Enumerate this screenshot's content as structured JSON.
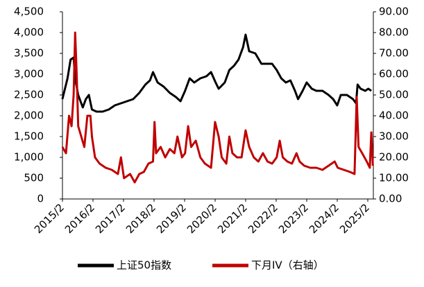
{
  "chart_data": {
    "type": "line",
    "xlim": [
      2015.083,
      2025.265
    ],
    "xticks": [
      {
        "value": 2015.083,
        "label": "2015/2"
      },
      {
        "value": 2016.083,
        "label": "2016/2"
      },
      {
        "value": 2017.083,
        "label": "2017/2"
      },
      {
        "value": 2018.083,
        "label": "2018/2"
      },
      {
        "value": 2019.083,
        "label": "2019/2"
      },
      {
        "value": 2020.083,
        "label": "2020/2"
      },
      {
        "value": 2021.083,
        "label": "2021/2"
      },
      {
        "value": 2022.083,
        "label": "2022/2"
      },
      {
        "value": 2023.083,
        "label": "2023/2"
      },
      {
        "value": 2024.083,
        "label": "2024/2"
      },
      {
        "value": 2025.083,
        "label": "2025/2"
      }
    ],
    "ylim": [
      0,
      4500
    ],
    "yticks": [
      0,
      500,
      {
        "value": 1000,
        "label": "1,000"
      },
      {
        "value": 1500,
        "label": "1,500"
      },
      {
        "value": 2000,
        "label": "2,000"
      },
      {
        "value": 2500,
        "label": "2,500"
      },
      {
        "value": 3000,
        "label": "3,000"
      },
      {
        "value": 3500,
        "label": "3,500"
      },
      {
        "value": 4000,
        "label": "4,000"
      },
      {
        "value": 4500,
        "label": "4,500"
      }
    ],
    "y2lim": [
      0,
      90
    ],
    "y2ticks": [
      {
        "value": 0,
        "label": "0.00"
      },
      {
        "value": 10,
        "label": "10.00"
      },
      {
        "value": 20,
        "label": "20.00"
      },
      {
        "value": 30,
        "label": "30.00"
      },
      {
        "value": 40,
        "label": "40.00"
      },
      {
        "value": 50,
        "label": "50.00"
      },
      {
        "value": 60,
        "label": "60.00"
      },
      {
        "value": 70,
        "label": "70.00"
      },
      {
        "value": 80,
        "label": "80.00"
      },
      {
        "value": 90,
        "label": "90.00"
      }
    ],
    "series": [
      {
        "name": "上证50指数",
        "color": "#000000",
        "x": [
          2015.08,
          2015.25,
          2015.35,
          2015.45,
          2015.5,
          2015.6,
          2015.75,
          2015.85,
          2015.95,
          2016.05,
          2016.2,
          2016.4,
          2016.6,
          2016.8,
          2017.0,
          2017.2,
          2017.4,
          2017.6,
          2017.8,
          2017.95,
          2018.05,
          2018.2,
          2018.4,
          2018.6,
          2018.8,
          2018.95,
          2019.1,
          2019.25,
          2019.4,
          2019.6,
          2019.8,
          2019.95,
          2020.1,
          2020.2,
          2020.4,
          2020.55,
          2020.7,
          2020.85,
          2021.0,
          2021.08,
          2021.2,
          2021.4,
          2021.6,
          2021.8,
          2021.95,
          2022.1,
          2022.25,
          2022.4,
          2022.55,
          2022.7,
          2022.8,
          2022.95,
          2023.08,
          2023.25,
          2023.4,
          2023.6,
          2023.8,
          2023.95,
          2024.08,
          2024.2,
          2024.4,
          2024.6,
          2024.7,
          2024.75,
          2024.85,
          2025.0,
          2025.1,
          2025.2
        ],
        "values": [
          2400,
          2900,
          3350,
          3400,
          2900,
          2500,
          2200,
          2400,
          2500,
          2150,
          2100,
          2100,
          2150,
          2250,
          2300,
          2350,
          2400,
          2550,
          2750,
          2850,
          3050,
          2800,
          2700,
          2550,
          2450,
          2350,
          2600,
          2900,
          2800,
          2900,
          2950,
          3050,
          2800,
          2650,
          2800,
          3100,
          3200,
          3350,
          3650,
          3950,
          3550,
          3500,
          3250,
          3250,
          3250,
          3100,
          2900,
          2800,
          2850,
          2600,
          2400,
          2600,
          2800,
          2650,
          2600,
          2600,
          2500,
          2400,
          2250,
          2500,
          2500,
          2400,
          2300,
          2750,
          2650,
          2600,
          2650,
          2600
        ]
      },
      {
        "name": "下月IV（右轴）",
        "color": "#c00000",
        "axis": "y2",
        "x": [
          2015.08,
          2015.2,
          2015.3,
          2015.38,
          2015.45,
          2015.5,
          2015.55,
          2015.6,
          2015.7,
          2015.8,
          2015.9,
          2016.0,
          2016.05,
          2016.15,
          2016.3,
          2016.5,
          2016.7,
          2016.9,
          2017.0,
          2017.1,
          2017.3,
          2017.45,
          2017.6,
          2017.75,
          2017.9,
          2018.05,
          2018.1,
          2018.15,
          2018.3,
          2018.45,
          2018.6,
          2018.75,
          2018.85,
          2019.0,
          2019.1,
          2019.2,
          2019.3,
          2019.45,
          2019.6,
          2019.75,
          2019.95,
          2020.08,
          2020.2,
          2020.3,
          2020.45,
          2020.55,
          2020.65,
          2020.8,
          2020.95,
          2021.08,
          2021.2,
          2021.35,
          2021.5,
          2021.65,
          2021.8,
          2021.95,
          2022.1,
          2022.2,
          2022.3,
          2022.45,
          2022.6,
          2022.75,
          2022.85,
          2023.0,
          2023.2,
          2023.4,
          2023.6,
          2023.8,
          2024.0,
          2024.1,
          2024.3,
          2024.5,
          2024.65,
          2024.72,
          2024.78,
          2024.9,
          2025.05,
          2025.15,
          2025.2,
          2025.25
        ],
        "values": [
          25,
          22,
          40,
          35,
          50,
          80,
          60,
          35,
          30,
          25,
          40,
          40,
          30,
          20,
          17,
          15,
          14,
          12,
          20,
          10,
          12,
          8,
          12,
          13,
          17,
          18,
          37,
          22,
          25,
          20,
          24,
          22,
          30,
          20,
          22,
          35,
          25,
          28,
          20,
          17,
          15,
          37,
          30,
          20,
          17,
          30,
          22,
          20,
          20,
          33,
          25,
          20,
          18,
          22,
          18,
          17,
          20,
          28,
          20,
          18,
          17,
          22,
          18,
          16,
          15,
          15,
          14,
          16,
          18,
          15,
          14,
          13,
          12,
          49,
          25,
          22,
          18,
          15,
          32,
          16
        ]
      }
    ]
  }
}
